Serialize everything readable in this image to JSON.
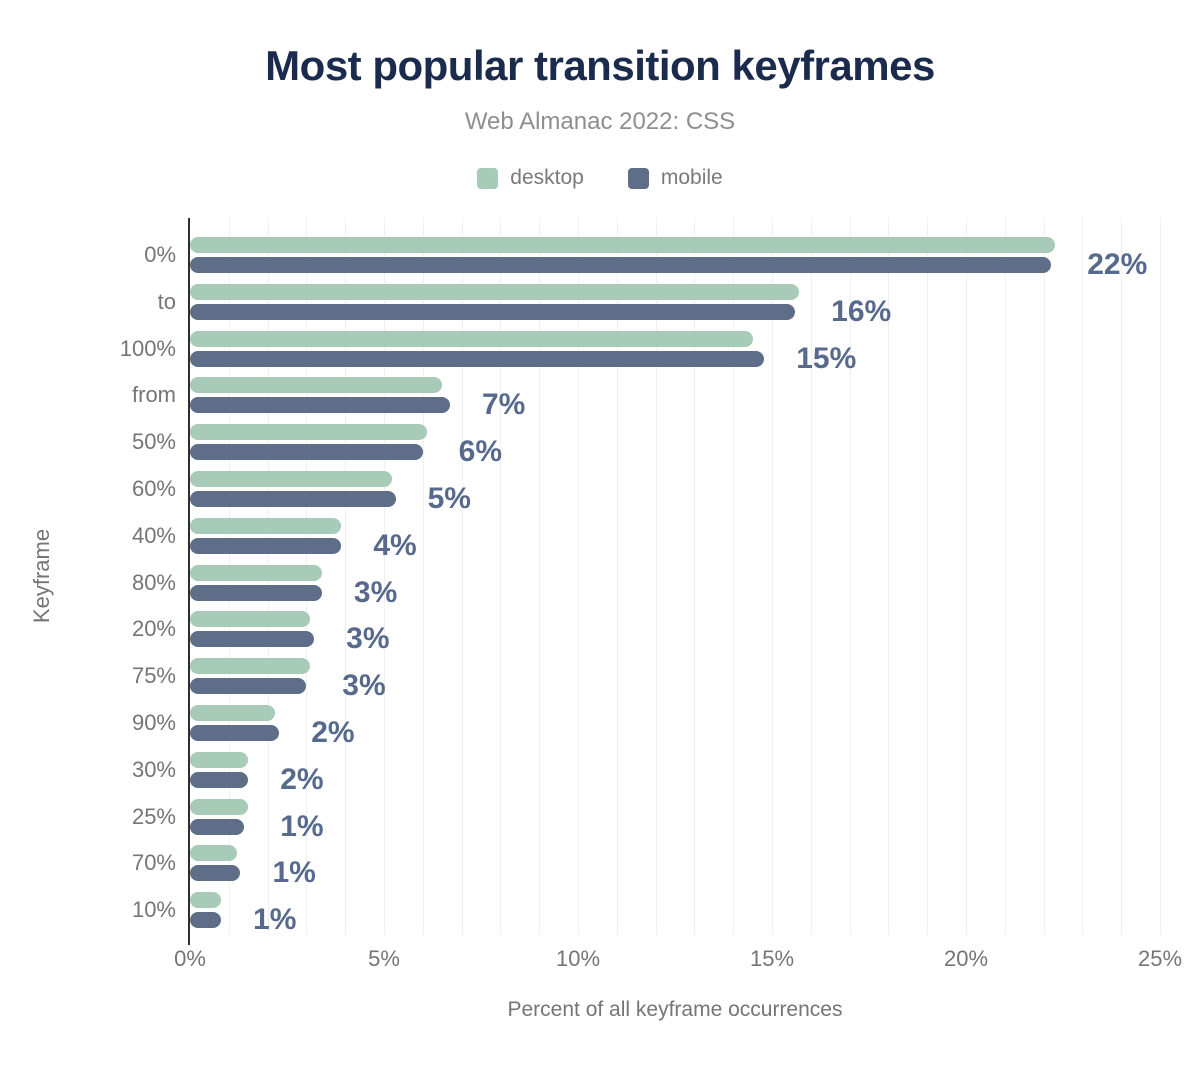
{
  "header": {
    "title": "Most popular transition keyframes",
    "subtitle": "Web Almanac 2022: CSS"
  },
  "legend": [
    {
      "label": "desktop",
      "color": "#a7cbb8"
    },
    {
      "label": "mobile",
      "color": "#5e6e88"
    }
  ],
  "colors": {
    "desktop_bar": "#a7cbb8",
    "mobile_bar": "#5e6e88",
    "value_label": "#57698c",
    "title": "#1b2b4d",
    "axis_text": "#757575",
    "axis_line": "#2e2e2e",
    "gridline": "#f0f0f0"
  },
  "chart_data": {
    "type": "bar",
    "orientation": "horizontal",
    "title": "Most popular transition keyframes",
    "subtitle": "Web Almanac 2022: CSS",
    "xlabel": "Percent of all keyframe occurrences",
    "ylabel": "Keyframe",
    "xlim": [
      0,
      25
    ],
    "x_tick_labels": [
      "0%",
      "5%",
      "10%",
      "15%",
      "20%",
      "25%"
    ],
    "grid": "vertical minor gridlines every 1%",
    "legend_position": "top",
    "categories": [
      "0%",
      "to",
      "100%",
      "from",
      "50%",
      "60%",
      "40%",
      "80%",
      "20%",
      "75%",
      "90%",
      "30%",
      "25%",
      "70%",
      "10%"
    ],
    "series": [
      {
        "name": "desktop",
        "values": [
          22.3,
          15.7,
          14.5,
          6.5,
          6.1,
          5.2,
          3.9,
          3.4,
          3.1,
          3.1,
          2.2,
          1.5,
          1.5,
          1.2,
          0.8
        ]
      },
      {
        "name": "mobile",
        "values": [
          22.2,
          15.6,
          14.8,
          6.7,
          6.0,
          5.3,
          3.9,
          3.4,
          3.2,
          3.0,
          2.3,
          1.5,
          1.4,
          1.3,
          0.8
        ]
      }
    ],
    "bar_labels": [
      "22%",
      "16%",
      "15%",
      "7%",
      "6%",
      "5%",
      "4%",
      "3%",
      "3%",
      "3%",
      "2%",
      "2%",
      "1%",
      "1%",
      "1%"
    ]
  }
}
